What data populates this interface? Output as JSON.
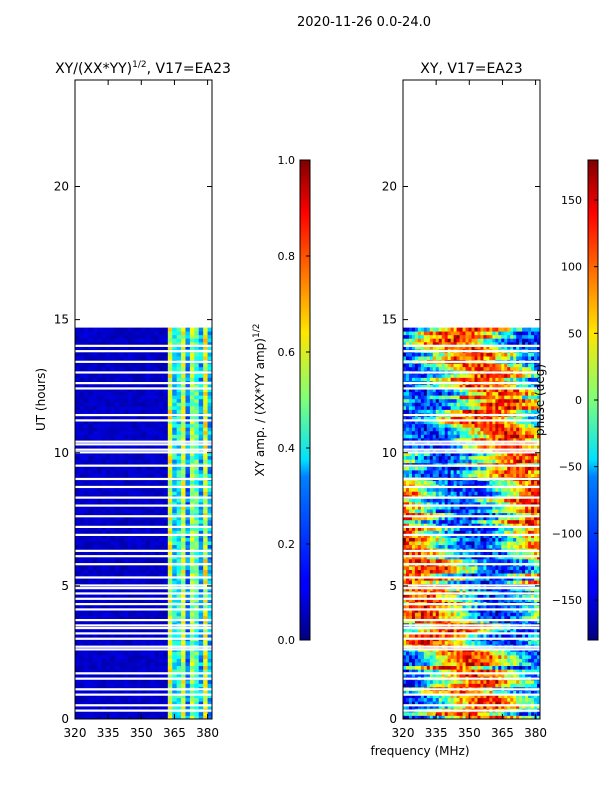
{
  "suptitle": "2020-11-26 0.0-24.0",
  "chart_data": [
    {
      "type": "heatmap",
      "title": "XY/(XX*YY)^1/2, V17=EA23",
      "title_main": "XY/(XX*YY)",
      "title_exp": "1/2",
      "title_rest": ", V17=EA23",
      "xlabel": "",
      "ylabel": "UT (hours)",
      "xlim": [
        320,
        382
      ],
      "ylim": [
        0,
        24
      ],
      "xticks": [
        320,
        335,
        350,
        365,
        380
      ],
      "yticks": [
        0,
        5,
        10,
        15,
        20
      ],
      "data_extent_hours": [
        0,
        14.7
      ],
      "gap_rows_hours": [
        0.3,
        0.5,
        0.9,
        1.1,
        1.5,
        1.7,
        2.6,
        2.7,
        3.0,
        3.2,
        3.4,
        3.5,
        3.7,
        4.1,
        4.3,
        4.5,
        4.7,
        4.9,
        5.0,
        5.3,
        5.8,
        6.1,
        6.3,
        6.9,
        7.2,
        7.6,
        8.0,
        8.3,
        8.7,
        9.0,
        9.5,
        10.0,
        10.1,
        10.3,
        10.4,
        11.2,
        11.4,
        12.4,
        12.6,
        13.0,
        13.4,
        13.8,
        14.0
      ],
      "colorbar": {
        "label": "XY amp. / (XX*YY amp)^1/2",
        "label_main": "XY amp. / (XX*YY amp)",
        "label_exp": "1/2",
        "min": 0.0,
        "max": 1.0,
        "ticks": [
          "0.0",
          "0.2",
          "0.4",
          "0.6",
          "0.8",
          "1.0"
        ]
      }
    },
    {
      "type": "heatmap",
      "title": "XY, V17=EA23",
      "xlabel": "frequency (MHz)",
      "ylabel": "",
      "xlim": [
        320,
        382
      ],
      "ylim": [
        0,
        24
      ],
      "xticks": [
        320,
        335,
        350,
        365,
        380
      ],
      "yticks": [
        0,
        5,
        10,
        15,
        20
      ],
      "data_extent_hours": [
        0,
        14.7
      ],
      "gap_rows_hours": [
        0.3,
        0.5,
        0.9,
        1.1,
        1.5,
        1.7,
        2.6,
        2.7,
        3.0,
        3.2,
        3.4,
        3.5,
        3.7,
        4.1,
        4.3,
        4.5,
        4.7,
        4.9,
        5.0,
        5.3,
        5.8,
        6.1,
        6.3,
        6.9,
        7.2,
        7.6,
        8.0,
        8.3,
        8.7,
        9.0,
        9.5,
        10.0,
        10.1,
        10.3,
        10.4,
        11.2,
        11.4,
        12.4,
        12.6,
        13.0,
        13.4,
        13.8,
        14.0
      ],
      "colorbar": {
        "label": "phase (deg)",
        "min": -180,
        "max": 180,
        "ticks": [
          "−150",
          "−100",
          "−50",
          "0",
          "50",
          "100",
          "150"
        ],
        "tick_values": [
          -150,
          -100,
          -50,
          0,
          50,
          100,
          150
        ]
      }
    }
  ]
}
